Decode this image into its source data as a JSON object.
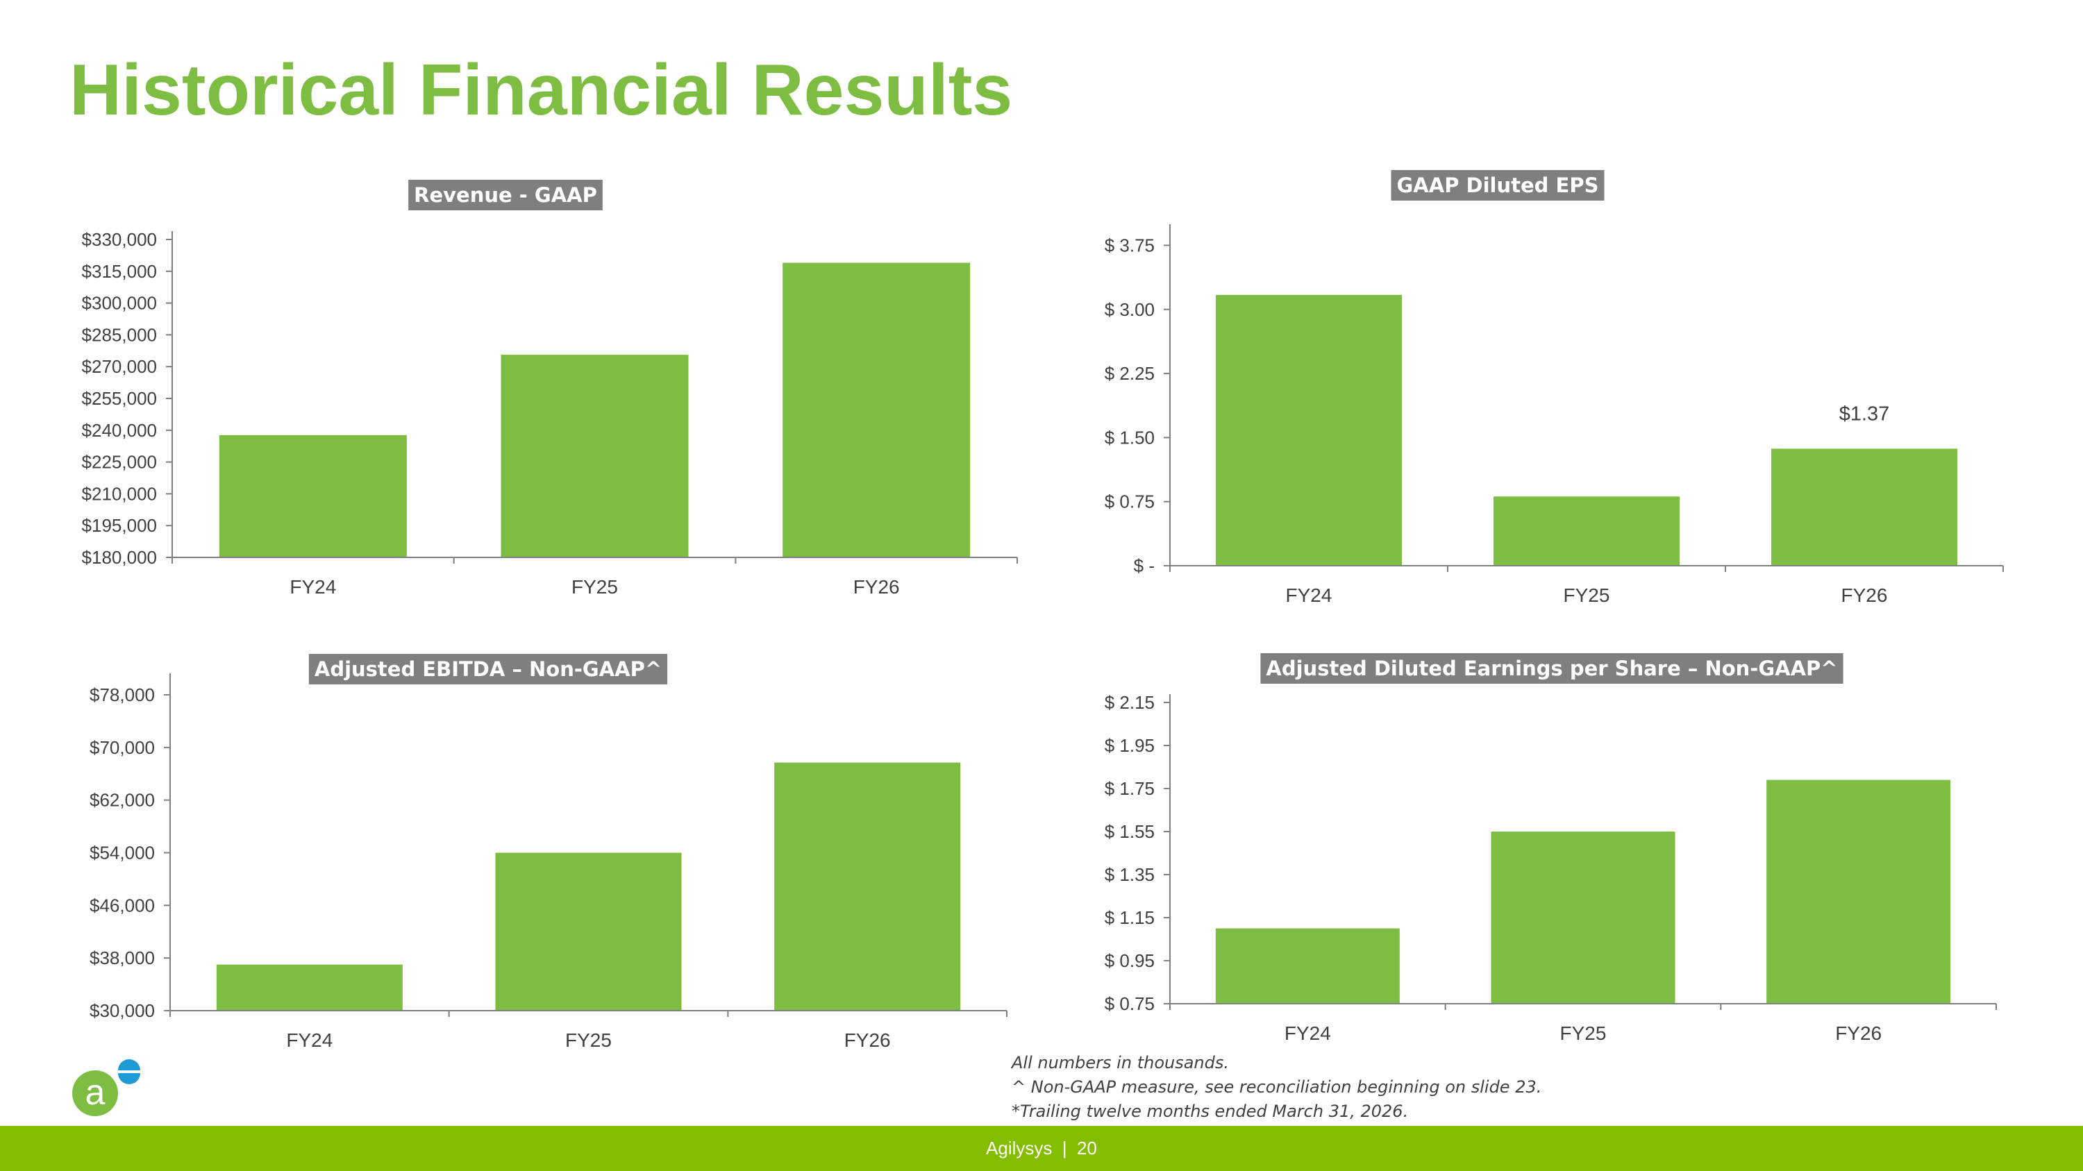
{
  "page": {
    "title": "Historical Financial Results",
    "notes": [
      "All numbers in thousands.",
      "^ Non-GAAP measure, see reconciliation beginning on slide 23.",
      "*Trailing twelve months ended March 31, 2026."
    ],
    "footer": {
      "company": "Agilysys",
      "separator": "|",
      "page_number": "20"
    }
  },
  "colors": {
    "bar": "#7cbd42",
    "title": "#7cbd42",
    "chart_title_bg": "#7f7f7f",
    "footer_bg": "#84bd00",
    "axis": "#7f7f7f"
  },
  "logo": {
    "icon": "agilysys-logo-icon",
    "colors": [
      "#7cbd42",
      "#1e9bd7"
    ]
  },
  "chart_data": [
    {
      "type": "bar",
      "title": "Revenue - GAAP",
      "categories": [
        "FY24",
        "FY25",
        "FY26"
      ],
      "values": [
        237700,
        275600,
        319000
      ],
      "ylim": [
        180000,
        330000
      ],
      "yticks": [
        180000,
        195000,
        210000,
        225000,
        240000,
        255000,
        270000,
        285000,
        300000,
        315000,
        330000
      ],
      "ytick_labels": [
        "$180,000",
        "$195,000",
        "$210,000",
        "$225,000",
        "$240,000",
        "$255,000",
        "$270,000",
        "$285,000",
        "$300,000",
        "$315,000",
        "$330,000"
      ],
      "data_labels": [
        "",
        "",
        ""
      ],
      "xlabel": "",
      "ylabel": "",
      "grid": false,
      "legend": "none"
    },
    {
      "type": "bar",
      "title": "GAAP Diluted EPS",
      "categories": [
        "FY24",
        "FY25",
        "FY26"
      ],
      "values": [
        3.17,
        0.81,
        1.37
      ],
      "ylim": [
        0,
        3.9
      ],
      "yticks": [
        0,
        0.75,
        1.5,
        2.25,
        3.0,
        3.75
      ],
      "ytick_labels": [
        "$ -",
        "$ 0.75",
        "$ 1.50",
        "$ 2.25",
        "$ 3.00",
        "$ 3.75"
      ],
      "data_labels": [
        "",
        "",
        "$1.37"
      ],
      "xlabel": "",
      "ylabel": "",
      "grid": false,
      "legend": "none"
    },
    {
      "type": "bar",
      "title": "Adjusted EBITDA – Non-GAAP^",
      "categories": [
        "FY24",
        "FY25",
        "FY26"
      ],
      "values": [
        37000,
        54000,
        67700
      ],
      "ylim": [
        30000,
        80000
      ],
      "yticks": [
        30000,
        38000,
        46000,
        54000,
        62000,
        70000,
        78000
      ],
      "ytick_labels": [
        "$30,000",
        "$38,000",
        "$46,000",
        "$54,000",
        "$62,000",
        "$70,000",
        "$78,000"
      ],
      "data_labels": [
        "",
        "",
        ""
      ],
      "xlabel": "",
      "ylabel": "",
      "grid": false,
      "legend": "none"
    },
    {
      "type": "bar",
      "title": "Adjusted Diluted Earnings per Share – Non-GAAP^",
      "categories": [
        "FY24",
        "FY25",
        "FY26"
      ],
      "values": [
        1.1,
        1.55,
        1.79
      ],
      "ylim": [
        0.75,
        2.15
      ],
      "yticks": [
        0.75,
        0.95,
        1.15,
        1.35,
        1.55,
        1.75,
        1.95,
        2.15
      ],
      "ytick_labels": [
        "$ 0.75",
        "$ 0.95",
        "$ 1.15",
        "$ 1.35",
        "$ 1.55",
        "$ 1.75",
        "$ 1.95",
        "$ 2.15"
      ],
      "data_labels": [
        "",
        "",
        ""
      ],
      "xlabel": "",
      "ylabel": "",
      "grid": false,
      "legend": "none"
    }
  ]
}
